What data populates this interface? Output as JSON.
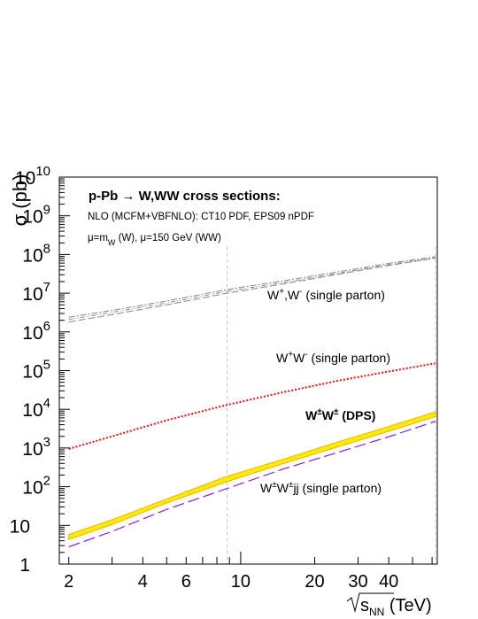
{
  "chart_data": {
    "type": "line",
    "title_lines": [
      "p-Pb → W,WW cross sections:"
    ],
    "notes": [
      "NLO (MCFM+VBFNLO): CT10 PDF, EPS09 nPDF"
    ],
    "scale_note": {
      "pre": "μ=m",
      "sub": "W",
      "post": " (W), μ=150 GeV (WW)"
    },
    "ylabel": "σ (pb)",
    "xlabel": {
      "prefix": "s",
      "sub": "NN",
      "suffix": " (TeV)"
    },
    "xscale": "log",
    "yscale": "log",
    "xlim": [
      1.83,
      63
    ],
    "ylim": [
      1,
      10000000000.0
    ],
    "x_ticks": [
      {
        "value": 2,
        "label": "2"
      },
      {
        "value": 4,
        "label": "4"
      },
      {
        "value": 6,
        "label": "6"
      },
      {
        "value": 10,
        "label": "10"
      },
      {
        "value": 20,
        "label": "20"
      },
      {
        "value": 30,
        "label": "30"
      },
      {
        "value": 40,
        "label": "40"
      }
    ],
    "y_ticks": [
      {
        "value": 1,
        "label": "1"
      },
      {
        "value": 10,
        "label": "10"
      },
      {
        "value": 100,
        "mant": "10",
        "exp": "2"
      },
      {
        "value": 1000,
        "mant": "10",
        "exp": "3"
      },
      {
        "value": 10000,
        "mant": "10",
        "exp": "4"
      },
      {
        "value": 100000,
        "mant": "10",
        "exp": "5"
      },
      {
        "value": 1000000,
        "mant": "10",
        "exp": "6"
      },
      {
        "value": 10000000,
        "mant": "10",
        "exp": "7"
      },
      {
        "value": 100000000,
        "mant": "10",
        "exp": "8"
      },
      {
        "value": 1000000000,
        "mant": "10",
        "exp": "9"
      },
      {
        "value": 10000000000,
        "mant": "10",
        "exp": "10"
      }
    ],
    "reference_lines_x": [
      8.8,
      62
    ],
    "series": [
      {
        "x": [
          2,
          3,
          5,
          8.8,
          15,
          25,
          40,
          62
        ],
        "y": [
          2400000.0,
          3600000.0,
          6300000.0,
          12500000.0,
          21000000.0,
          36000000.0,
          59000000.0,
          88000000.0
        ]
      },
      {
        "x": [
          2,
          3,
          5,
          8.8,
          15,
          25,
          40,
          62
        ],
        "y": [
          2100000.0,
          3200000.0,
          5600000.0,
          11200000.0,
          19000000.0,
          33000000.0,
          55000000.0,
          83000000.0
        ]
      },
      {
        "x": [
          2,
          3,
          5,
          8.8,
          15,
          25,
          40,
          62
        ],
        "y": [
          1800000.0,
          2800000.0,
          5000000.0,
          10000000.0,
          17500000.0,
          31000000.0,
          52000000.0,
          80000000.0
        ]
      },
      {
        "x": [
          2,
          3,
          5,
          8.8,
          15,
          25,
          40,
          62
        ],
        "y": [
          950,
          2000,
          5200,
          13000,
          28000,
          55000,
          95000,
          155000
        ]
      },
      {
        "x": [
          2,
          3,
          5,
          8.8,
          15,
          25,
          40,
          62
        ],
        "y_low": [
          4.3,
          10.5,
          38,
          135,
          400,
          1080,
          2700,
          6500
        ],
        "y_high": [
          5.8,
          14,
          48,
          185,
          520,
          1450,
          3600,
          8600
        ]
      },
      {
        "x": [
          2,
          3,
          5,
          8.8,
          15,
          25,
          40,
          62
        ],
        "y": [
          2.8,
          7,
          26,
          90,
          290,
          780,
          1950,
          4900
        ]
      }
    ],
    "curve_labels": [
      {
        "base": "W",
        "sup1": "+",
        "mid": ",W",
        "sup2": "-",
        "rest": " (single parton)"
      },
      {
        "base": "W",
        "sup1": "+",
        "mid": "W",
        "sup2": "-",
        "rest": "  (single parton)"
      },
      {
        "base": "W",
        "sup1": "±",
        "mid": "W",
        "sup2": "±",
        "rest": " (DPS)"
      },
      {
        "base": "W",
        "sup1": "±",
        "mid": "W",
        "sup2": "±",
        "rest": "jj (single parton)"
      }
    ],
    "colors": {
      "single_W": "#888888",
      "opposite_sign_WW": "#e8120c",
      "dps_band_fill": "#ffea00",
      "dps_band_edge": "#e6b800",
      "wwjj": "#8a2be2",
      "reference_lines": "#c8c8c8"
    }
  }
}
